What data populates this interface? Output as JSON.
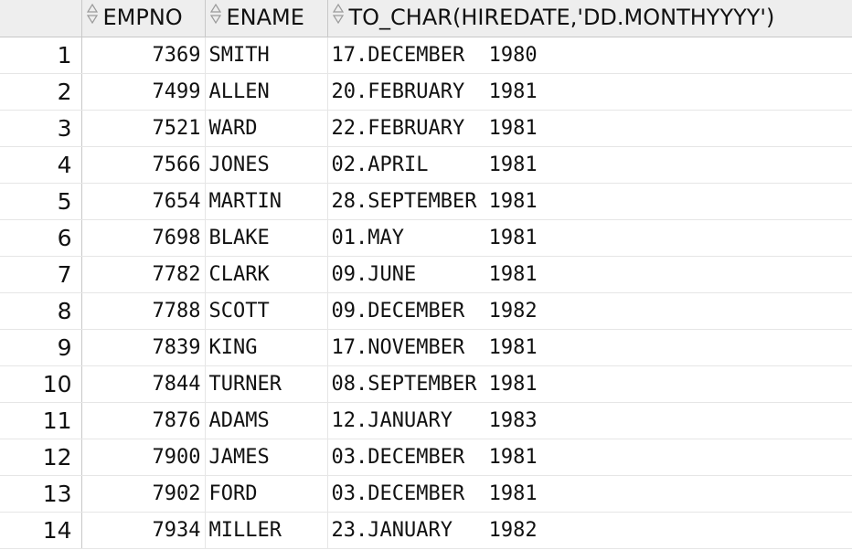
{
  "grid": {
    "columns": [
      {
        "label": "EMPNO",
        "icon": "sort-icon"
      },
      {
        "label": "ENAME",
        "icon": "sort-icon"
      },
      {
        "label": "TO_CHAR(HIREDATE,'DD.MONTHYYYY')",
        "icon": "sort-icon"
      }
    ],
    "rows": [
      {
        "num": "1",
        "empno": "7369",
        "ename": "SMITH",
        "hire": "17.DECEMBER  1980"
      },
      {
        "num": "2",
        "empno": "7499",
        "ename": "ALLEN",
        "hire": "20.FEBRUARY  1981"
      },
      {
        "num": "3",
        "empno": "7521",
        "ename": "WARD",
        "hire": "22.FEBRUARY  1981"
      },
      {
        "num": "4",
        "empno": "7566",
        "ename": "JONES",
        "hire": "02.APRIL     1981"
      },
      {
        "num": "5",
        "empno": "7654",
        "ename": "MARTIN",
        "hire": "28.SEPTEMBER 1981"
      },
      {
        "num": "6",
        "empno": "7698",
        "ename": "BLAKE",
        "hire": "01.MAY       1981"
      },
      {
        "num": "7",
        "empno": "7782",
        "ename": "CLARK",
        "hire": "09.JUNE      1981"
      },
      {
        "num": "8",
        "empno": "7788",
        "ename": "SCOTT",
        "hire": "09.DECEMBER  1982"
      },
      {
        "num": "9",
        "empno": "7839",
        "ename": "KING",
        "hire": "17.NOVEMBER  1981"
      },
      {
        "num": "10",
        "empno": "7844",
        "ename": "TURNER",
        "hire": "08.SEPTEMBER 1981"
      },
      {
        "num": "11",
        "empno": "7876",
        "ename": "ADAMS",
        "hire": "12.JANUARY   1983"
      },
      {
        "num": "12",
        "empno": "7900",
        "ename": "JAMES",
        "hire": "03.DECEMBER  1981"
      },
      {
        "num": "13",
        "empno": "7902",
        "ename": "FORD",
        "hire": "03.DECEMBER  1981"
      },
      {
        "num": "14",
        "empno": "7934",
        "ename": "MILLER",
        "hire": "23.JANUARY   1982"
      }
    ]
  }
}
